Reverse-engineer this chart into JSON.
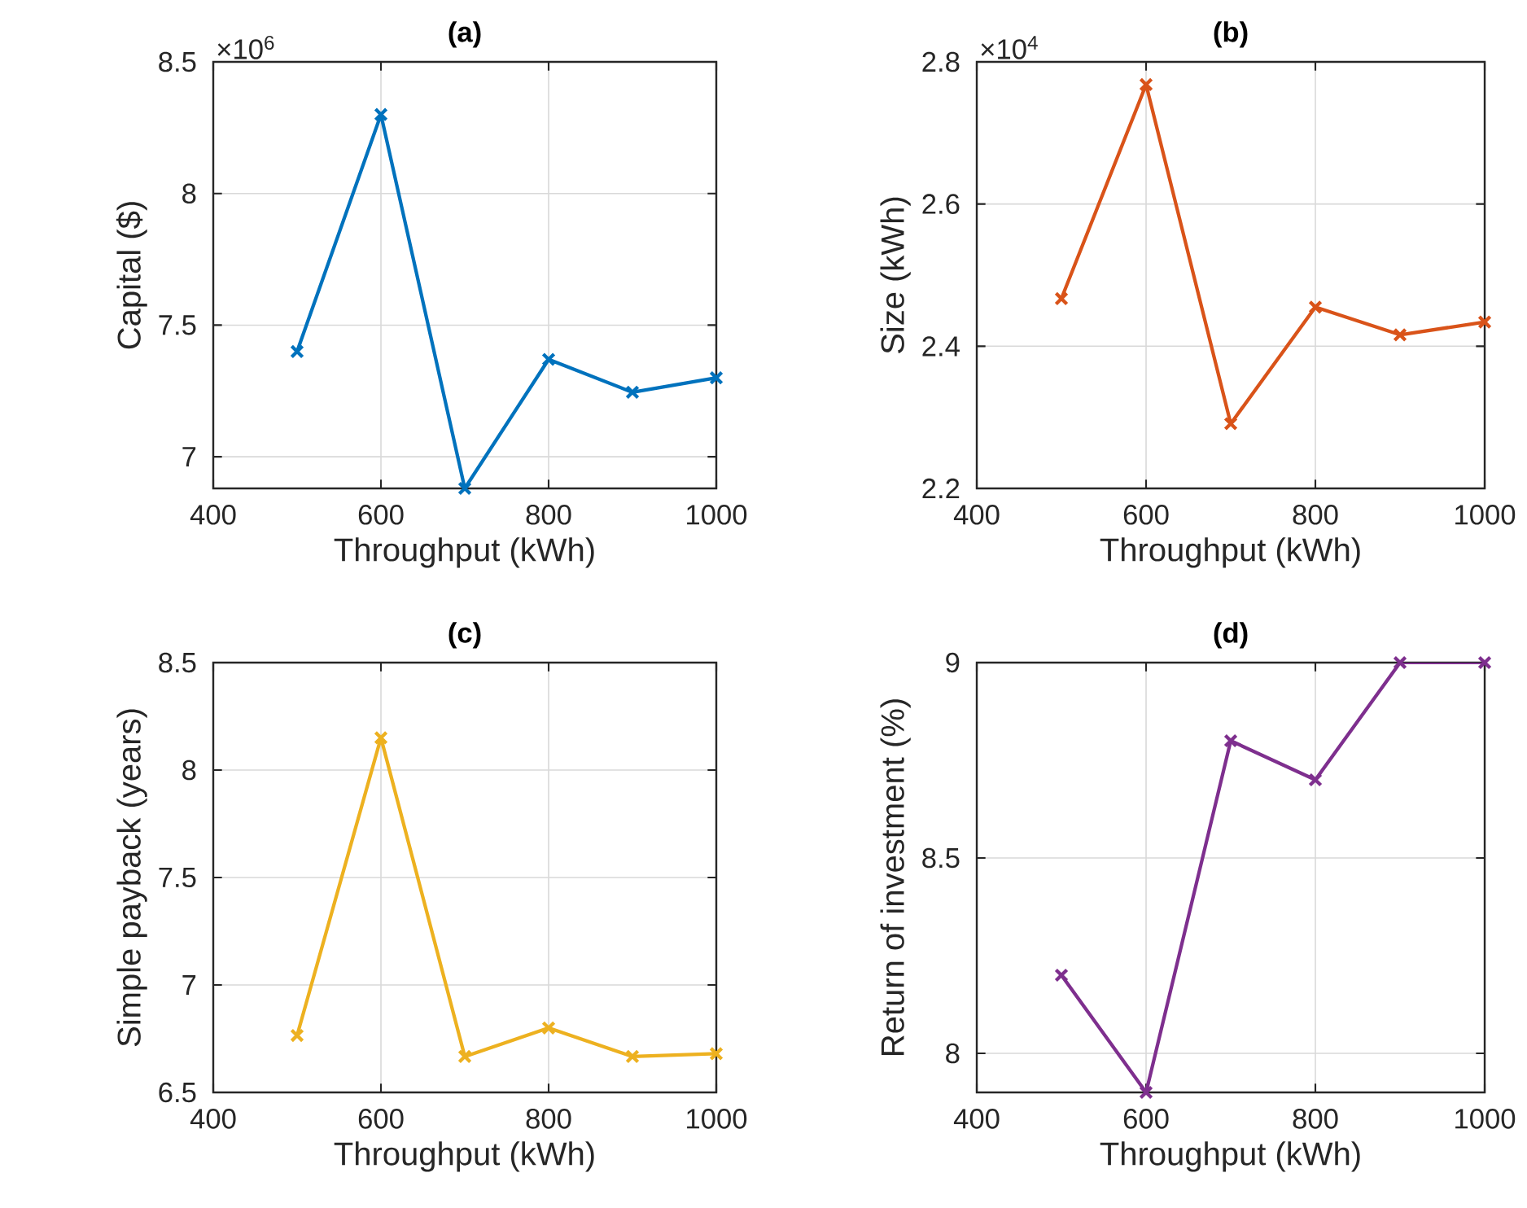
{
  "chart_data": [
    {
      "type": "line",
      "title": "(a)",
      "xlabel": "Throughput (kWh)",
      "ylabel": "Capital ($)",
      "x": [
        500,
        600,
        700,
        800,
        900,
        1000
      ],
      "series": [
        {
          "color": "#0072bd",
          "values": [
            7.4,
            8.3,
            6.88,
            7.37,
            7.245,
            7.3
          ]
        }
      ],
      "xlim": [
        400,
        1000
      ],
      "xticks": [
        400,
        600,
        800,
        1000
      ],
      "ylim": [
        6.88,
        8.5
      ],
      "yticks": [
        7,
        7.5,
        8,
        8.5
      ],
      "annotations": [
        "×10$^{6}$"
      ],
      "grid": true,
      "marker": "cross",
      "line_style": "solid"
    },
    {
      "type": "line",
      "title": "(b)",
      "xlabel": "Throughput (kWh)",
      "ylabel": "Size (kWh)",
      "x": [
        500,
        600,
        700,
        800,
        900,
        1000
      ],
      "series": [
        {
          "color": "#d95319",
          "values": [
            2.467,
            2.768,
            2.291,
            2.455,
            2.416,
            2.434
          ]
        }
      ],
      "xlim": [
        400,
        1000
      ],
      "xticks": [
        400,
        600,
        800,
        1000
      ],
      "ylim": [
        2.2,
        2.8
      ],
      "yticks": [
        2.2,
        2.4,
        2.6,
        2.8
      ],
      "annotations": [
        "×10$^{4}$"
      ],
      "grid": true,
      "marker": "cross",
      "line_style": "solid"
    },
    {
      "type": "line",
      "title": "(c)",
      "xlabel": "Throughput (kWh)",
      "ylabel": "Simple payback (years)",
      "x": [
        500,
        600,
        700,
        800,
        900,
        1000
      ],
      "series": [
        {
          "color": "#edb120",
          "values": [
            6.765,
            8.15,
            6.667,
            6.8,
            6.667,
            6.68
          ]
        }
      ],
      "xlim": [
        400,
        1000
      ],
      "xticks": [
        400,
        600,
        800,
        1000
      ],
      "ylim": [
        6.5,
        8.5
      ],
      "yticks": [
        6.5,
        7,
        7.5,
        8,
        8.5
      ],
      "grid": true,
      "marker": "cross",
      "line_style": "solid"
    },
    {
      "type": "line",
      "title": "(d)",
      "xlabel": "Throughput (kWh)",
      "ylabel": "Return of investment (%)",
      "x": [
        500,
        600,
        700,
        800,
        900,
        1000
      ],
      "series": [
        {
          "color": "#7e2f8e",
          "values": [
            8.2,
            7.9,
            8.8,
            8.7,
            9,
            9
          ]
        }
      ],
      "xlim": [
        400,
        1000
      ],
      "xticks": [
        400,
        600,
        800,
        1000
      ],
      "ylim": [
        7.9,
        9
      ],
      "yticks": [
        8,
        8.5,
        9
      ],
      "grid": true,
      "marker": "cross",
      "line_style": "solid"
    }
  ]
}
